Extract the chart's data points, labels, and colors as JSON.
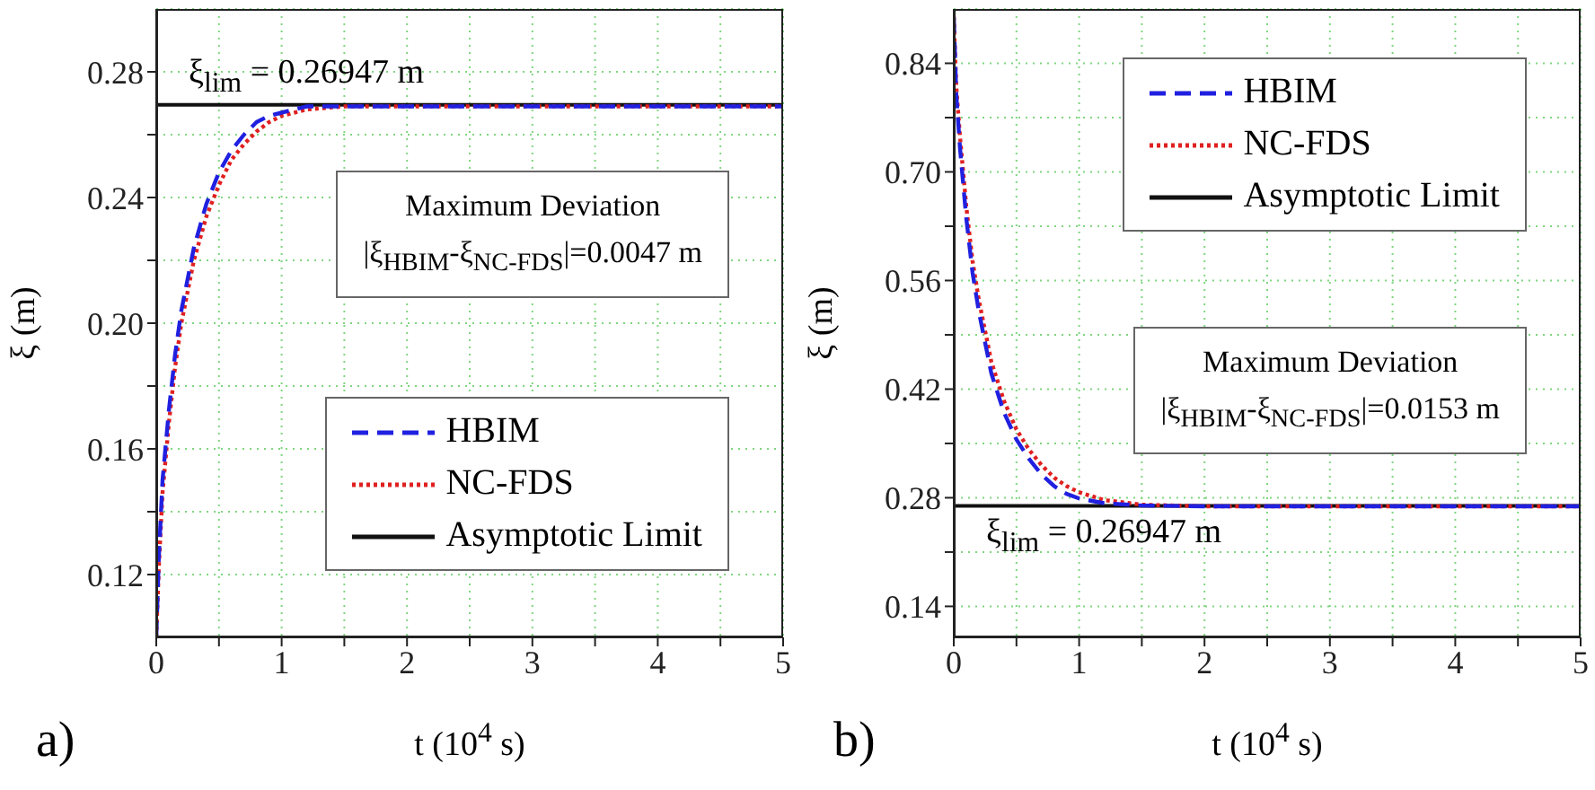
{
  "chart_data": [
    {
      "type": "line",
      "title": "a)",
      "xlabel": "t (10$^{4}$ s)",
      "ylabel": "ξ (m)",
      "xlim": [
        0,
        5
      ],
      "ylim": [
        0.1,
        0.3
      ],
      "xticks": [
        {
          "value": 0,
          "label": "0"
        },
        {
          "value": 0.5,
          "label": null
        },
        {
          "value": 1,
          "label": "1"
        },
        {
          "value": 1.5,
          "label": null
        },
        {
          "value": 2,
          "label": "2"
        },
        {
          "value": 2.5,
          "label": null
        },
        {
          "value": 3,
          "label": "3"
        },
        {
          "value": 3.5,
          "label": null
        },
        {
          "value": 4,
          "label": "4"
        },
        {
          "value": 4.5,
          "label": null
        },
        {
          "value": 5,
          "label": "5"
        }
      ],
      "yticks": [
        {
          "value": 0.12,
          "label": "0.12"
        },
        {
          "value": 0.14,
          "label": null
        },
        {
          "value": 0.16,
          "label": "0.16"
        },
        {
          "value": 0.18,
          "label": null
        },
        {
          "value": 0.2,
          "label": "0.20"
        },
        {
          "value": 0.22,
          "label": null
        },
        {
          "value": 0.24,
          "label": "0.24"
        },
        {
          "value": 0.26,
          "label": null
        },
        {
          "value": 0.28,
          "label": "0.28"
        }
      ],
      "grid": true,
      "legend": "bottom right",
      "marker": "none",
      "series": [
        {
          "name": "HBIM",
          "color": "#2020e0",
          "line_style": "dashed",
          "x": [
            0,
            0.02,
            0.05,
            0.1,
            0.15,
            0.2,
            0.3,
            0.4,
            0.5,
            0.6,
            0.7,
            0.8,
            0.9,
            1.0,
            1.2,
            1.5,
            2,
            3,
            4,
            5
          ],
          "values": [
            0.1,
            0.125,
            0.15,
            0.172,
            0.19,
            0.204,
            0.224,
            0.238,
            0.248,
            0.255,
            0.26,
            0.264,
            0.266,
            0.267,
            0.269,
            0.269,
            0.269,
            0.269,
            0.269,
            0.269
          ]
        },
        {
          "name": "NC-FDS",
          "color": "#e02020",
          "line_style": "dotted",
          "x": [
            0,
            0.02,
            0.05,
            0.1,
            0.15,
            0.2,
            0.3,
            0.4,
            0.5,
            0.6,
            0.7,
            0.8,
            0.9,
            1.0,
            1.2,
            1.5,
            2,
            3,
            4,
            5
          ],
          "values": [
            0.1,
            0.122,
            0.146,
            0.168,
            0.186,
            0.2,
            0.22,
            0.234,
            0.244,
            0.252,
            0.257,
            0.261,
            0.264,
            0.266,
            0.268,
            0.269,
            0.269,
            0.269,
            0.269,
            0.269
          ]
        },
        {
          "name": "Asymptotic Limit",
          "color": "#111111",
          "line_style": "solid",
          "x": [
            0,
            5
          ],
          "values": [
            0.26947,
            0.26947
          ]
        }
      ],
      "annotations": [
        "ξ$_{lim}$ = 0.26947 m",
        "Maximum Deviation",
        "|ξ$_{HBIM}$-ξ$_{NC-FDS}$|=0.0047 m"
      ]
    },
    {
      "type": "line",
      "title": "b)",
      "xlabel": "t (10$^{4}$ s)",
      "ylabel": "ξ (m)",
      "xlim": [
        0,
        5
      ],
      "ylim": [
        0.1,
        0.91
      ],
      "xticks": [
        {
          "value": 0,
          "label": "0"
        },
        {
          "value": 0.5,
          "label": null
        },
        {
          "value": 1,
          "label": "1"
        },
        {
          "value": 1.5,
          "label": null
        },
        {
          "value": 2,
          "label": "2"
        },
        {
          "value": 2.5,
          "label": null
        },
        {
          "value": 3,
          "label": "3"
        },
        {
          "value": 3.5,
          "label": null
        },
        {
          "value": 4,
          "label": "4"
        },
        {
          "value": 4.5,
          "label": null
        },
        {
          "value": 5,
          "label": "5"
        }
      ],
      "yticks": [
        {
          "value": 0.14,
          "label": "0.14"
        },
        {
          "value": 0.21,
          "label": null
        },
        {
          "value": 0.28,
          "label": "0.28"
        },
        {
          "value": 0.35,
          "label": null
        },
        {
          "value": 0.42,
          "label": "0.42"
        },
        {
          "value": 0.49,
          "label": null
        },
        {
          "value": 0.56,
          "label": "0.56"
        },
        {
          "value": 0.63,
          "label": null
        },
        {
          "value": 0.7,
          "label": "0.70"
        },
        {
          "value": 0.77,
          "label": null
        },
        {
          "value": 0.84,
          "label": "0.84"
        }
      ],
      "grid": true,
      "legend": "top right",
      "marker": "none",
      "series": [
        {
          "name": "HBIM",
          "color": "#2020e0",
          "line_style": "dashed",
          "x": [
            0,
            0.02,
            0.05,
            0.1,
            0.15,
            0.2,
            0.3,
            0.4,
            0.5,
            0.6,
            0.7,
            0.8,
            0.9,
            1.0,
            1.2,
            1.5,
            2,
            3,
            4,
            5
          ],
          "values": [
            0.9,
            0.8,
            0.73,
            0.64,
            0.57,
            0.52,
            0.44,
            0.39,
            0.355,
            0.33,
            0.31,
            0.295,
            0.285,
            0.279,
            0.273,
            0.27,
            0.269,
            0.269,
            0.269,
            0.269
          ]
        },
        {
          "name": "NC-FDS",
          "color": "#e02020",
          "line_style": "dotted",
          "x": [
            0,
            0.02,
            0.05,
            0.1,
            0.15,
            0.2,
            0.3,
            0.4,
            0.5,
            0.6,
            0.7,
            0.8,
            0.9,
            1.0,
            1.2,
            1.5,
            2,
            3,
            4,
            5
          ],
          "values": [
            0.9,
            0.81,
            0.745,
            0.655,
            0.585,
            0.535,
            0.455,
            0.405,
            0.368,
            0.342,
            0.322,
            0.306,
            0.295,
            0.287,
            0.277,
            0.271,
            0.269,
            0.269,
            0.269,
            0.269
          ]
        },
        {
          "name": "Asymptotic Limit",
          "color": "#111111",
          "line_style": "solid",
          "x": [
            0,
            5
          ],
          "values": [
            0.26947,
            0.26947
          ]
        }
      ],
      "annotations": [
        "ξ$_{lim}$ = 0.26947 m",
        "Maximum Deviation",
        "|ξ$_{HBIM}$-ξ$_{NC-FDS}$|=0.0153 m"
      ]
    }
  ]
}
